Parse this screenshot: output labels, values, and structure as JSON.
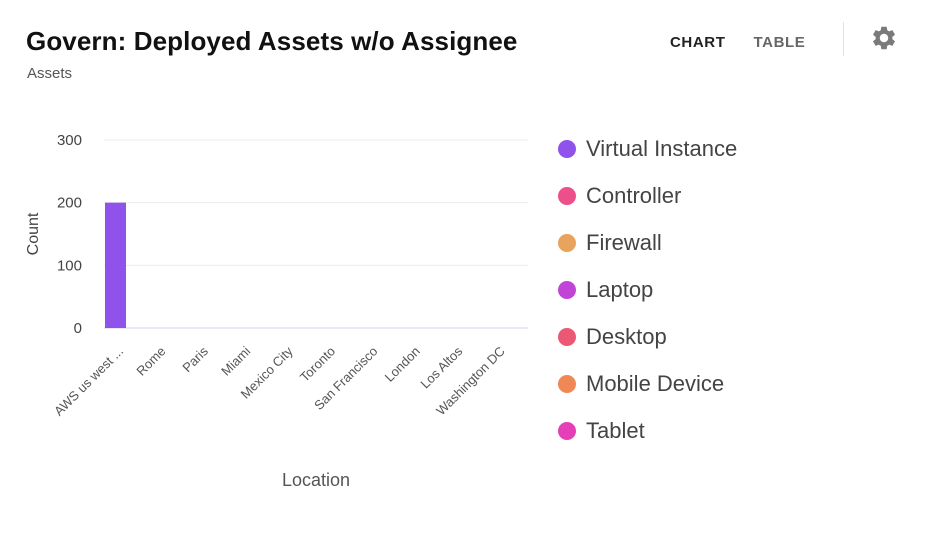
{
  "header": {
    "title": "Govern: Deployed Assets w/o Assignee",
    "subtitle": "Assets",
    "tabs": [
      {
        "label": "CHART",
        "active": true
      },
      {
        "label": "TABLE",
        "active": false
      }
    ],
    "settings_icon": "gear-icon"
  },
  "chart_data": {
    "type": "bar",
    "title": "",
    "xlabel": "Location",
    "ylabel": "Count",
    "ylim": [
      0,
      300
    ],
    "yticks": [
      0,
      100,
      200,
      300
    ],
    "grid": true,
    "legend_position": "right",
    "categories": [
      "AWS us west ...",
      "Rome",
      "Paris",
      "Miami",
      "Mexico City",
      "Toronto",
      "San Francisco",
      "London",
      "Los Altos",
      "Washington DC"
    ],
    "series": [
      {
        "name": "Virtual Instance",
        "color": "#8f52eb",
        "values": [
          200,
          0,
          0,
          0,
          0,
          0,
          0,
          0,
          0,
          0
        ]
      },
      {
        "name": "Controller",
        "color": "#ec4f8a",
        "values": [
          0,
          0,
          0,
          0,
          0,
          0,
          0,
          0,
          0,
          0
        ]
      },
      {
        "name": "Firewall",
        "color": "#e8a35c",
        "values": [
          0,
          0,
          0,
          0,
          0,
          0,
          0,
          0,
          0,
          0
        ]
      },
      {
        "name": "Laptop",
        "color": "#c244d6",
        "values": [
          0,
          0,
          0,
          0,
          0,
          0,
          0,
          0,
          0,
          0
        ]
      },
      {
        "name": "Desktop",
        "color": "#ec5873",
        "values": [
          0,
          0,
          0,
          0,
          0,
          0,
          0,
          0,
          0,
          0
        ]
      },
      {
        "name": "Mobile Device",
        "color": "#f08856",
        "values": [
          0,
          0,
          0,
          0,
          0,
          0,
          0,
          0,
          0,
          0
        ]
      },
      {
        "name": "Tablet",
        "color": "#e53fb8",
        "values": [
          0,
          0,
          0,
          0,
          0,
          0,
          0,
          0,
          0,
          0
        ]
      }
    ]
  }
}
